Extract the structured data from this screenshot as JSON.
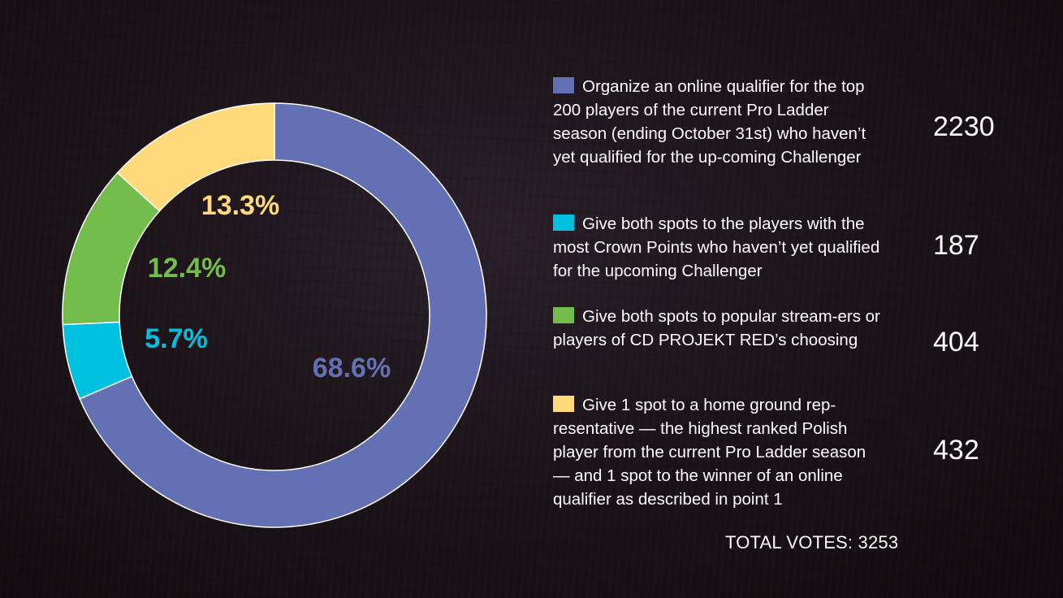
{
  "chart_data": {
    "type": "pie",
    "donut": true,
    "categories": [
      "Organize an online qualifier for the top 200 players of the current Pro Ladder season (ending October 31st) who haven’t yet qualified for the up-coming Challenger",
      "Give both spots to the players with the most Crown Points who haven’t yet qualified for the upcoming Challenger",
      "Give both spots to popular stream-ers or players of CD PROJEKT RED’s choosing",
      "Give 1 spot to a home ground rep-resentative — the highest ranked Polish player from the current Pro Ladder season — and 1 spot to the winner of an online qualifier as described in point 1"
    ],
    "values": [
      2230,
      187,
      404,
      432
    ],
    "percent_labels": [
      "68.6%",
      "5.7%",
      "12.4%",
      "13.3%"
    ],
    "colors": [
      "#6470b4",
      "#00c0e0",
      "#74bc4b",
      "#ffd97a"
    ],
    "total_label": "TOTAL VOTES: 3253",
    "legend_position": "right"
  },
  "legend": {
    "items": [
      {
        "text": "Organize an online qualifier for the top 200 players of the current Pro Ladder season (ending October 31st) who haven’t yet qualified for the up-coming Challenger",
        "value": "2230",
        "color": "#6470b4"
      },
      {
        "text": "Give both spots to the players with the most Crown Points who haven’t yet qualified for the upcoming Challenger",
        "value": "187",
        "color": "#00c0e0"
      },
      {
        "text": "Give both spots to popular stream-ers or players of CD PROJEKT RED’s choosing",
        "value": "404",
        "color": "#74bc4b"
      },
      {
        "text": "Give 1 spot to a home ground rep-resentative — the highest ranked Polish player from the current Pro Ladder season — and 1 spot to the winner of an online qualifier as described in point 1",
        "value": "432",
        "color": "#ffd97a"
      }
    ],
    "total": "TOTAL VOTES: 3253"
  }
}
